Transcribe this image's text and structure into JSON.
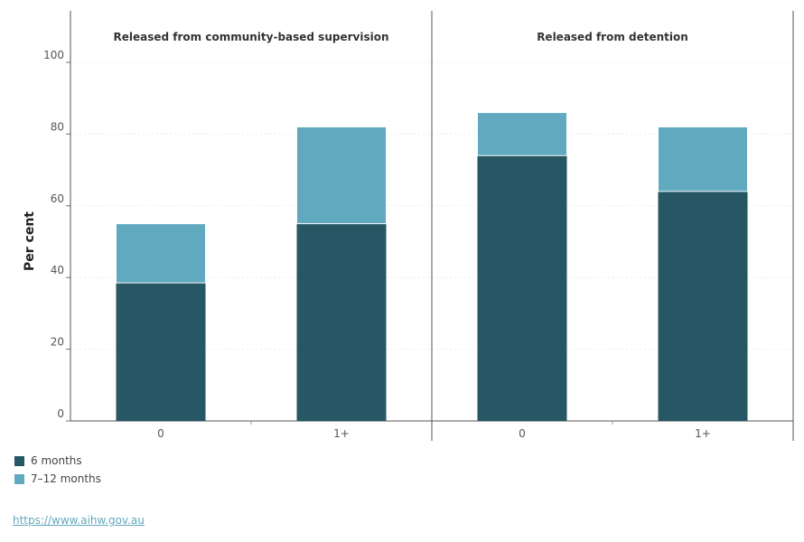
{
  "chart_data": {
    "type": "bar",
    "stacked": true,
    "ylabel": "Per cent",
    "ylim": [
      0,
      100
    ],
    "yticks": [
      0,
      20,
      40,
      60,
      80,
      100
    ],
    "grid": true,
    "legend_position": "bottom-left",
    "colors": {
      "six_months": "#275665",
      "seven_to_twelve": "#61a9be"
    },
    "panels": [
      {
        "title": "Released from community-based supervision",
        "categories": [
          "0",
          "1+"
        ],
        "series": [
          {
            "name": "6 months",
            "values": [
              38.5,
              55
            ]
          },
          {
            "name": "7–12 months",
            "values": [
              16.5,
              27
            ]
          }
        ]
      },
      {
        "title": "Released from detention",
        "categories": [
          "0",
          "1+"
        ],
        "series": [
          {
            "name": "6 months",
            "values": [
              74,
              64
            ]
          },
          {
            "name": "7–12 months",
            "values": [
              12,
              18
            ]
          }
        ]
      }
    ]
  },
  "legend": {
    "items": [
      {
        "label": "6 months",
        "color": "#275665"
      },
      {
        "label": "7–12 months",
        "color": "#61a9be"
      }
    ]
  },
  "source": {
    "text": "https://www.aihw.gov.au"
  }
}
